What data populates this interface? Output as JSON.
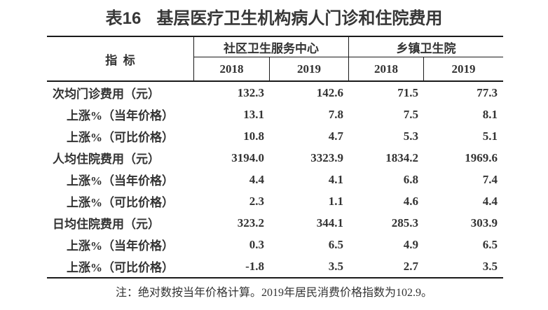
{
  "colors": {
    "text": "#333333",
    "line": "#1a1a1a",
    "background": "#ffffff"
  },
  "title": {
    "prefix": "表16",
    "text": "基层医疗卫生机构病人门诊和住院费用"
  },
  "table": {
    "indicator_header": "指  标",
    "groups": [
      {
        "label": "社区卫生服务中心",
        "years": [
          "2018",
          "2019"
        ]
      },
      {
        "label": "乡镇卫生院",
        "years": [
          "2018",
          "2019"
        ]
      }
    ],
    "rows": [
      {
        "indicator": "次均门诊费用（元）",
        "indent": false,
        "values": [
          "132.3",
          "142.6",
          "71.5",
          "77.3"
        ]
      },
      {
        "indicator": "上涨%（当年价格）",
        "indent": true,
        "values": [
          "13.1",
          "7.8",
          "7.5",
          "8.1"
        ]
      },
      {
        "indicator": "上涨%（可比价格）",
        "indent": true,
        "values": [
          "10.8",
          "4.7",
          "5.3",
          "5.1"
        ]
      },
      {
        "indicator": "人均住院费用（元）",
        "indent": false,
        "values": [
          "3194.0",
          "3323.9",
          "1834.2",
          "1969.6"
        ]
      },
      {
        "indicator": "上涨%（当年价格）",
        "indent": true,
        "values": [
          "4.4",
          "4.1",
          "6.8",
          "7.4"
        ]
      },
      {
        "indicator": "上涨%（可比价格）",
        "indent": true,
        "values": [
          "2.3",
          "1.1",
          "4.6",
          "4.4"
        ]
      },
      {
        "indicator": "日均住院费用（元）",
        "indent": false,
        "values": [
          "323.2",
          "344.1",
          "285.3",
          "303.9"
        ]
      },
      {
        "indicator": "上涨%（当年价格）",
        "indent": true,
        "values": [
          "0.3",
          "6.5",
          "4.9",
          "6.5"
        ]
      },
      {
        "indicator": "上涨%（可比价格）",
        "indent": true,
        "values": [
          "-1.8",
          "3.5",
          "2.7",
          "3.5"
        ]
      }
    ]
  },
  "note": "注：绝对数按当年价格计算。2019年居民消费价格指数为102.9。"
}
